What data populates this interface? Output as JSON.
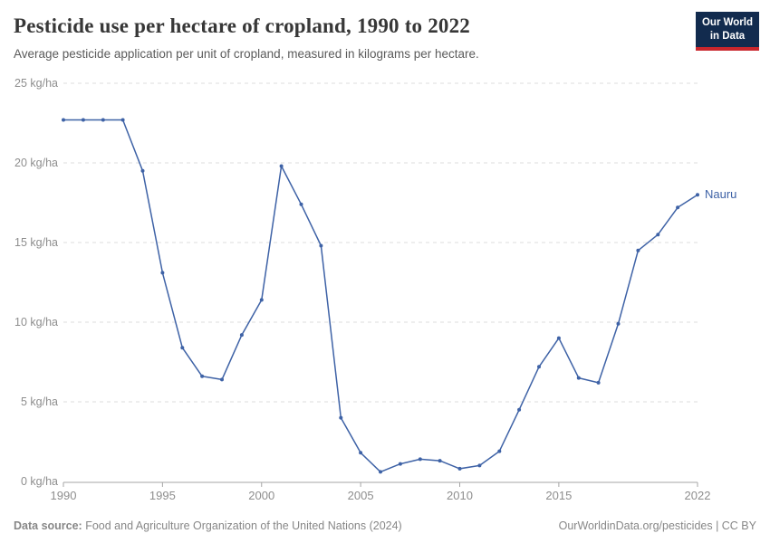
{
  "header": {
    "title": "Pesticide use per hectare of cropland, 1990 to 2022",
    "subtitle": "Average pesticide application per unit of cropland, measured in kilograms per hectare."
  },
  "logo": {
    "line1": "Our World",
    "line2": "in Data",
    "bg_color": "#122B4E",
    "bar_color": "#C9262C"
  },
  "chart_data": {
    "type": "line",
    "title": "Pesticide use per hectare of cropland, 1990 to 2022",
    "xlabel": "",
    "ylabel": "kg/ha",
    "xlim": [
      1990,
      2022
    ],
    "ylim": [
      0,
      25
    ],
    "grid": "horizontal-dashed",
    "legend_position": "end-of-line",
    "x_ticks": [
      1990,
      1995,
      2000,
      2005,
      2010,
      2015,
      2022
    ],
    "y_tick_values": [
      0,
      5,
      10,
      15,
      20,
      25
    ],
    "y_tick_labels": [
      "0 kg/ha",
      "5 kg/ha",
      "10 kg/ha",
      "15 kg/ha",
      "20 kg/ha",
      "25 kg/ha"
    ],
    "x": [
      1990,
      1991,
      1992,
      1993,
      1994,
      1995,
      1996,
      1997,
      1998,
      1999,
      2000,
      2001,
      2002,
      2003,
      2004,
      2005,
      2006,
      2007,
      2008,
      2009,
      2010,
      2011,
      2012,
      2013,
      2014,
      2015,
      2016,
      2017,
      2018,
      2019,
      2020,
      2021,
      2022
    ],
    "series": [
      {
        "name": "Nauru",
        "color": "#3E62A6",
        "values": [
          22.7,
          22.7,
          22.7,
          22.7,
          19.5,
          13.1,
          8.4,
          6.6,
          6.4,
          9.2,
          11.4,
          19.8,
          17.4,
          14.8,
          4.0,
          1.8,
          0.6,
          1.1,
          1.4,
          1.3,
          0.8,
          1.0,
          1.9,
          4.5,
          7.2,
          9.0,
          6.5,
          6.2,
          9.9,
          14.5,
          15.5,
          17.2,
          18.0
        ]
      }
    ],
    "axis_color": "#a5a5a5",
    "grid_color": "#dddddd",
    "tick_label_color": "#8e8e8e"
  },
  "footer": {
    "source_label": "Data source:",
    "source_text": " Food and Agriculture Organization of the United Nations (2024)",
    "credit": "OurWorldinData.org/pesticides | CC BY"
  }
}
